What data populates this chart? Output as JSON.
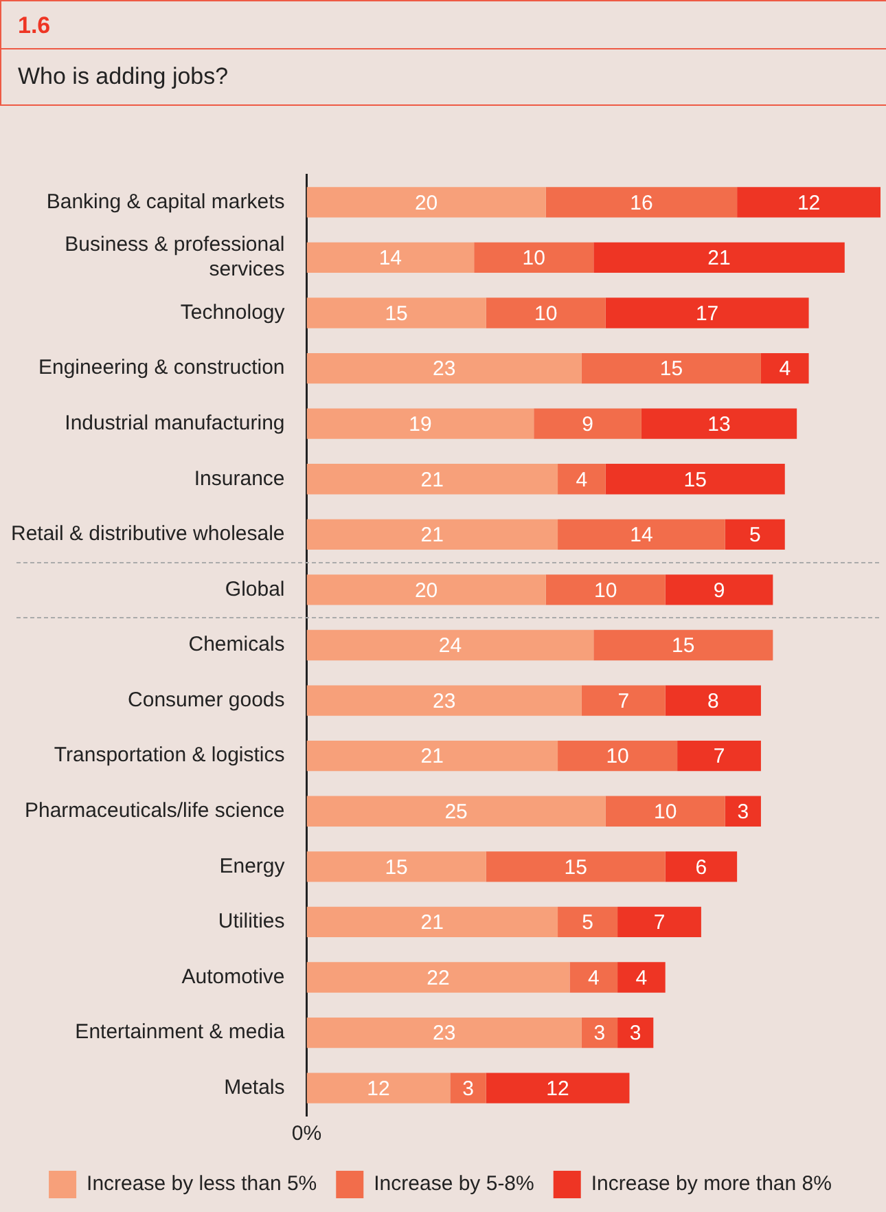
{
  "chart_data": {
    "type": "bar",
    "orientation": "horizontal",
    "stacked": true,
    "subtitle": "1.6",
    "title": "Who is adding jobs?",
    "categories": [
      "Banking & capital markets",
      "Business & professional services",
      "Technology",
      "Engineering & construction",
      "Industrial manufacturing",
      "Insurance",
      "Retail & distributive wholesale",
      "Global",
      "Chemicals",
      "Consumer goods",
      "Transportation & logistics",
      "Pharmaceuticals/life science",
      "Energy",
      "Utilities",
      "Automotive",
      "Entertainment & media",
      "Metals"
    ],
    "series": [
      {
        "name": "Increase by less than 5%",
        "color": "#f7a07a",
        "values": [
          20,
          14,
          15,
          23,
          19,
          21,
          21,
          20,
          24,
          23,
          21,
          25,
          15,
          21,
          22,
          23,
          12
        ]
      },
      {
        "name": "Increase by 5-8%",
        "color": "#f26d4b",
        "values": [
          16,
          10,
          10,
          15,
          9,
          4,
          14,
          10,
          15,
          7,
          10,
          10,
          15,
          5,
          4,
          3,
          3
        ]
      },
      {
        "name": "Increase by more than 8%",
        "color": "#ee3524",
        "values": [
          12,
          21,
          17,
          4,
          13,
          15,
          5,
          9,
          null,
          8,
          7,
          3,
          6,
          7,
          4,
          3,
          12
        ]
      }
    ],
    "annotations": [
      "0%"
    ],
    "data_labels": true,
    "legend": "bottom",
    "grid": false
  }
}
